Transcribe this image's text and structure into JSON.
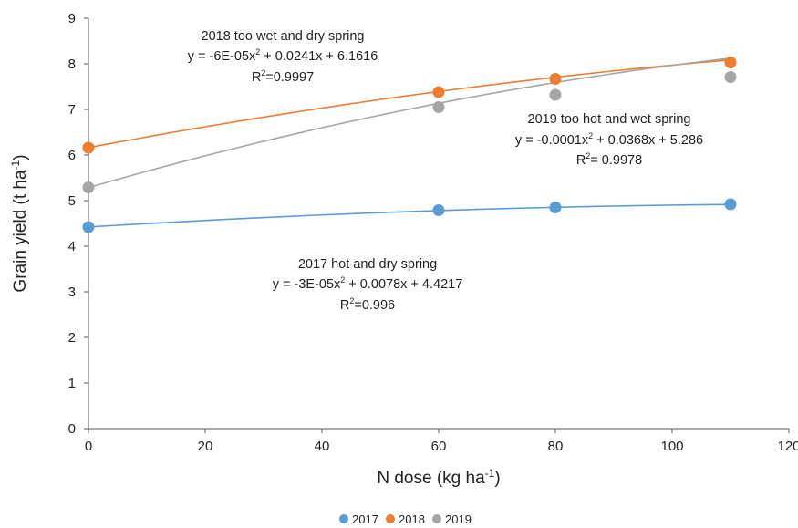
{
  "chart_data": {
    "type": "scatter",
    "xlabel": "N dose (kg ha",
    "xlabel_sup": "-1",
    "xlabel_end": ")",
    "ylabel": "Grain yield (t ha",
    "ylabel_sup": "-1",
    "ylabel_end": ")",
    "xlim": [
      0,
      120
    ],
    "ylim": [
      0,
      9
    ],
    "x_ticks": [
      0,
      20,
      40,
      60,
      80,
      100,
      120
    ],
    "y_ticks": [
      0,
      1,
      2,
      3,
      4,
      5,
      6,
      7,
      8,
      9
    ],
    "grid": false,
    "legend_position": "bottom",
    "series": [
      {
        "name": "2017",
        "color": "#5b9bd5",
        "x": [
          0,
          60,
          80,
          110
        ],
        "y": [
          4.42,
          4.79,
          4.85,
          4.92
        ],
        "trend": {
          "a": -3e-05,
          "b": 0.0078,
          "c": 4.4217
        }
      },
      {
        "name": "2018",
        "color": "#ed7d31",
        "x": [
          0,
          60,
          80,
          110
        ],
        "y": [
          6.16,
          7.38,
          7.67,
          8.03
        ],
        "trend": {
          "a": -6e-05,
          "b": 0.0241,
          "c": 6.1616
        }
      },
      {
        "name": "2019",
        "color": "#a5a5a5",
        "x": [
          0,
          60,
          80,
          110
        ],
        "y": [
          5.29,
          7.05,
          7.32,
          7.71
        ],
        "trend": {
          "a": -0.0001,
          "b": 0.0368,
          "c": 5.286
        }
      }
    ],
    "annotations": [
      {
        "title": "2018 too wet and dry spring",
        "eq_pre": "y = -6E-05x",
        "eq_post": " + 0.0241x + 6.1616",
        "r2_pre": "R",
        "r2_post": "=0.9997"
      },
      {
        "title": "2019 too hot and wet spring",
        "eq_pre": "y = -0.0001x",
        "eq_post": " + 0.0368x + 5.286",
        "r2_pre": "R",
        "r2_post": "= 0.9978"
      },
      {
        "title": "2017 hot and dry spring",
        "eq_pre": "y = -3E-05x",
        "eq_post": " + 0.0078x + 4.4217",
        "r2_pre": "R",
        "r2_post": "=0.996"
      }
    ],
    "sup2": "2"
  }
}
